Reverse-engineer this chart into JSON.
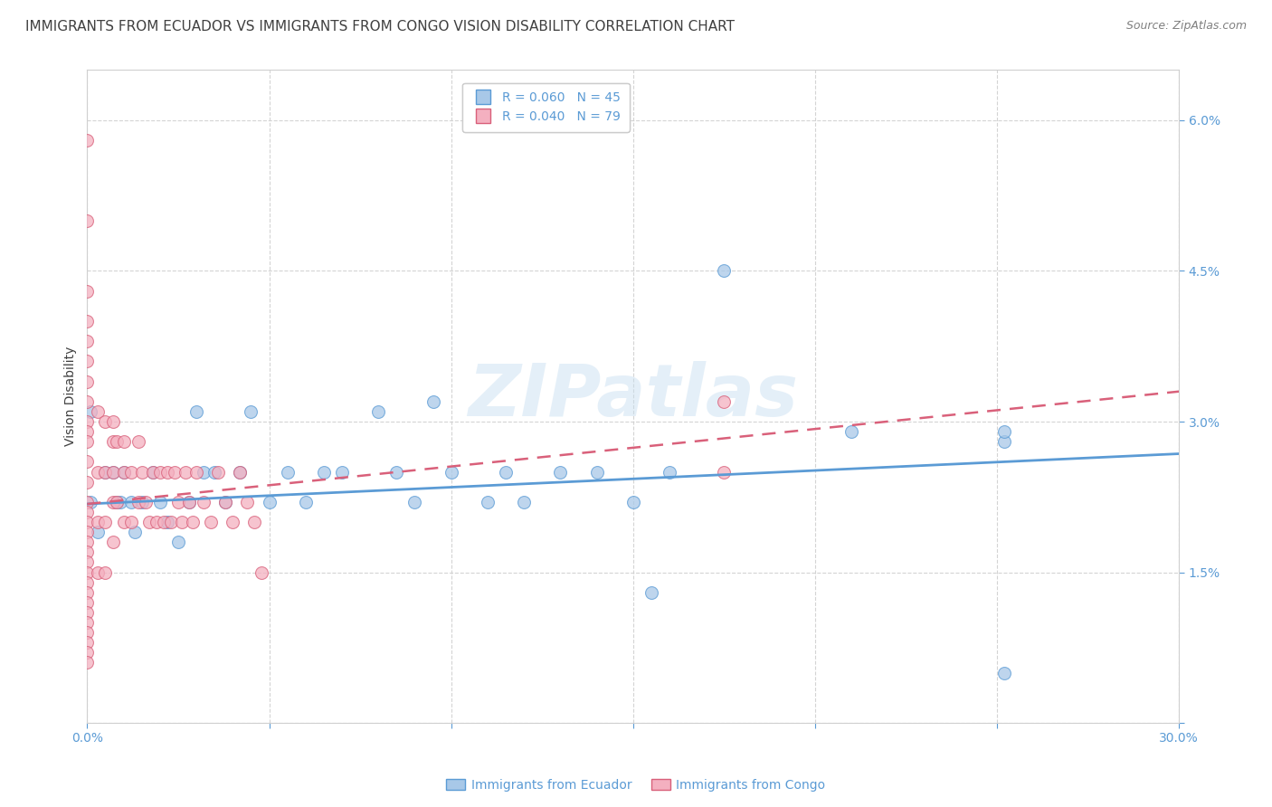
{
  "title": "IMMIGRANTS FROM ECUADOR VS IMMIGRANTS FROM CONGO VISION DISABILITY CORRELATION CHART",
  "source": "Source: ZipAtlas.com",
  "ylabel": "Vision Disability",
  "watermark": "ZIPatlas",
  "xlim": [
    0.0,
    0.3
  ],
  "ylim": [
    0.0,
    0.065
  ],
  "ecuador_color": "#a8c8e8",
  "ecuador_color_line": "#5b9bd5",
  "congo_color": "#f4b0c0",
  "congo_color_line": "#d9607a",
  "ecuador_R": 0.06,
  "ecuador_N": 45,
  "congo_R": 0.04,
  "congo_N": 79,
  "legend_label_ecuador": "Immigrants from Ecuador",
  "legend_label_congo": "Immigrants from Congo",
  "ecuador_x": [
    0.001,
    0.001,
    0.003,
    0.005,
    0.007,
    0.008,
    0.009,
    0.01,
    0.012,
    0.013,
    0.015,
    0.018,
    0.02,
    0.022,
    0.025,
    0.028,
    0.03,
    0.032,
    0.035,
    0.038,
    0.042,
    0.045,
    0.05,
    0.055,
    0.06,
    0.065,
    0.07,
    0.08,
    0.085,
    0.09,
    0.095,
    0.1,
    0.11,
    0.115,
    0.12,
    0.13,
    0.14,
    0.15,
    0.155,
    0.16,
    0.175,
    0.21,
    0.252,
    0.252,
    0.252
  ],
  "ecuador_y": [
    0.031,
    0.022,
    0.019,
    0.025,
    0.025,
    0.022,
    0.022,
    0.025,
    0.022,
    0.019,
    0.022,
    0.025,
    0.022,
    0.02,
    0.018,
    0.022,
    0.031,
    0.025,
    0.025,
    0.022,
    0.025,
    0.031,
    0.022,
    0.025,
    0.022,
    0.025,
    0.025,
    0.031,
    0.025,
    0.022,
    0.032,
    0.025,
    0.022,
    0.025,
    0.022,
    0.025,
    0.025,
    0.022,
    0.013,
    0.025,
    0.045,
    0.029,
    0.005,
    0.028,
    0.029
  ],
  "congo_x": [
    0.0,
    0.0,
    0.0,
    0.0,
    0.0,
    0.0,
    0.0,
    0.0,
    0.0,
    0.0,
    0.0,
    0.0,
    0.0,
    0.0,
    0.0,
    0.0,
    0.0,
    0.0,
    0.0,
    0.0,
    0.0,
    0.0,
    0.0,
    0.0,
    0.0,
    0.0,
    0.0,
    0.0,
    0.0,
    0.0,
    0.003,
    0.003,
    0.003,
    0.003,
    0.005,
    0.005,
    0.005,
    0.005,
    0.007,
    0.007,
    0.007,
    0.007,
    0.007,
    0.008,
    0.008,
    0.01,
    0.01,
    0.01,
    0.012,
    0.012,
    0.014,
    0.014,
    0.015,
    0.016,
    0.017,
    0.018,
    0.019,
    0.02,
    0.021,
    0.022,
    0.023,
    0.024,
    0.025,
    0.026,
    0.027,
    0.028,
    0.029,
    0.03,
    0.032,
    0.034,
    0.036,
    0.038,
    0.04,
    0.042,
    0.044,
    0.046,
    0.048,
    0.175,
    0.175
  ],
  "congo_y": [
    0.058,
    0.05,
    0.043,
    0.04,
    0.038,
    0.036,
    0.034,
    0.032,
    0.03,
    0.029,
    0.028,
    0.026,
    0.024,
    0.022,
    0.021,
    0.02,
    0.019,
    0.018,
    0.017,
    0.016,
    0.015,
    0.014,
    0.013,
    0.012,
    0.011,
    0.01,
    0.009,
    0.008,
    0.007,
    0.006,
    0.031,
    0.025,
    0.02,
    0.015,
    0.03,
    0.025,
    0.02,
    0.015,
    0.03,
    0.028,
    0.025,
    0.022,
    0.018,
    0.028,
    0.022,
    0.028,
    0.025,
    0.02,
    0.025,
    0.02,
    0.028,
    0.022,
    0.025,
    0.022,
    0.02,
    0.025,
    0.02,
    0.025,
    0.02,
    0.025,
    0.02,
    0.025,
    0.022,
    0.02,
    0.025,
    0.022,
    0.02,
    0.025,
    0.022,
    0.02,
    0.025,
    0.022,
    0.02,
    0.025,
    0.022,
    0.02,
    0.015,
    0.032,
    0.025
  ],
  "background_color": "#ffffff",
  "grid_color": "#d0d0d0",
  "tick_color": "#5b9bd5",
  "title_color": "#404040",
  "source_color": "#808080",
  "title_fontsize": 11,
  "axis_label_fontsize": 10,
  "tick_fontsize": 10,
  "legend_fontsize": 10,
  "marker_size": 100,
  "marker_alpha": 0.75
}
